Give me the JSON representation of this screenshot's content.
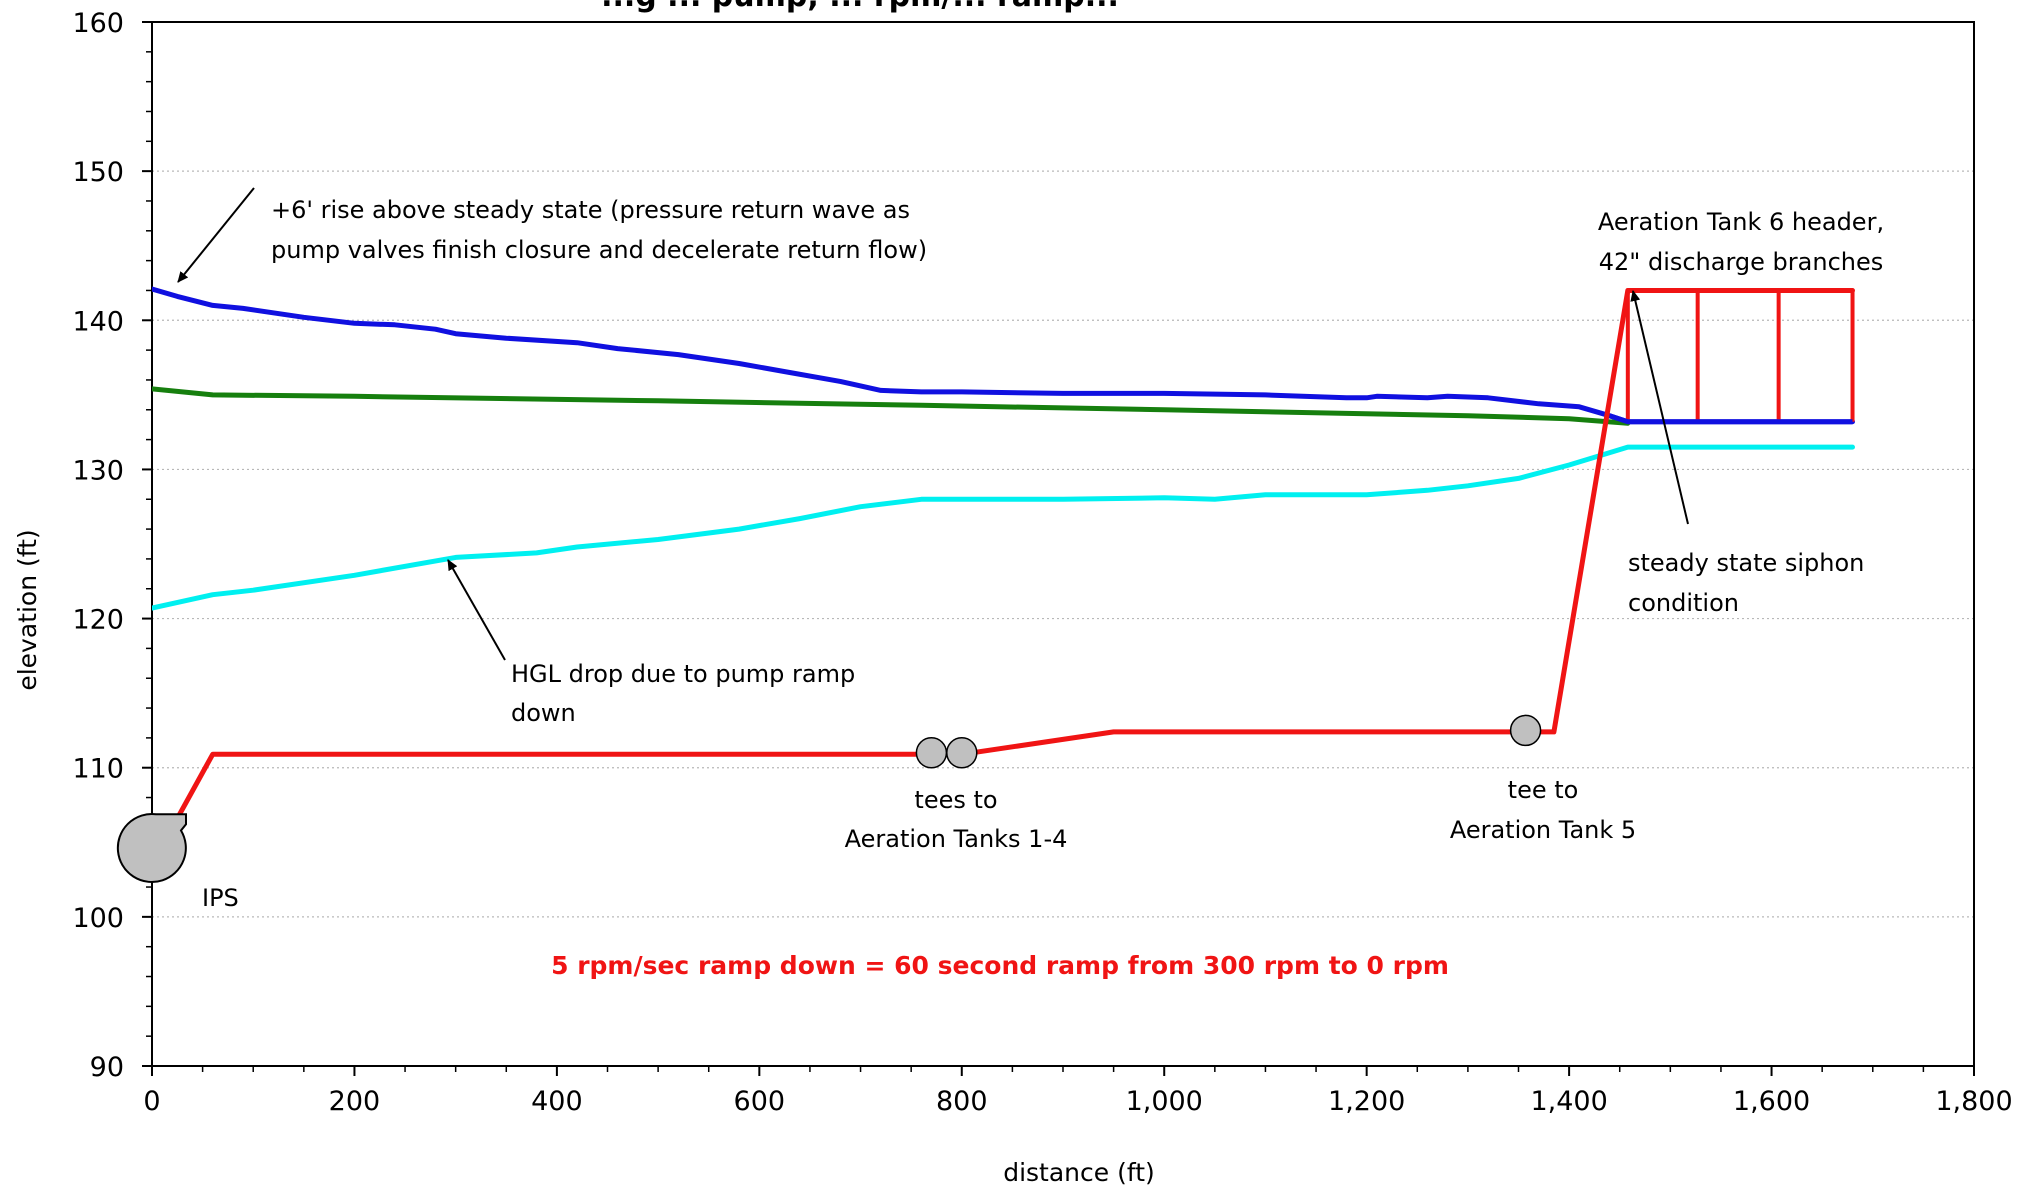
{
  "chart_data": {
    "type": "line",
    "title": "...g ... pump, ... rpm/... ramp...",
    "xlabel": "distance (ft)",
    "ylabel": "elevation (ft)",
    "xlim": [
      0,
      1800
    ],
    "ylim": [
      90,
      160
    ],
    "x_ticks": [
      0,
      200,
      400,
      600,
      800,
      1000,
      1200,
      1400,
      1600,
      1800
    ],
    "x_tick_labels": [
      "0",
      "200",
      "400",
      "600",
      "800",
      "1,000",
      "1,200",
      "1,400",
      "1,600",
      "1,800"
    ],
    "y_ticks": [
      90,
      100,
      110,
      120,
      130,
      140,
      150,
      160
    ],
    "y_tick_labels": [
      "90",
      "100",
      "110",
      "120",
      "130",
      "140",
      "150",
      "160"
    ],
    "grid": "horizontal dotted",
    "series": [
      {
        "key": "max_hgl",
        "color": "#1010e0",
        "points": [
          [
            0,
            142.1
          ],
          [
            25,
            141.6
          ],
          [
            60,
            141.0
          ],
          [
            90,
            140.8
          ],
          [
            150,
            140.2
          ],
          [
            200,
            139.8
          ],
          [
            240,
            139.7
          ],
          [
            280,
            139.4
          ],
          [
            300,
            139.1
          ],
          [
            350,
            138.8
          ],
          [
            420,
            138.5
          ],
          [
            460,
            138.1
          ],
          [
            520,
            137.7
          ],
          [
            580,
            137.1
          ],
          [
            630,
            136.5
          ],
          [
            680,
            135.9
          ],
          [
            720,
            135.3
          ],
          [
            760,
            135.2
          ],
          [
            800,
            135.2
          ],
          [
            900,
            135.1
          ],
          [
            1000,
            135.1
          ],
          [
            1100,
            135.0
          ],
          [
            1180,
            134.8
          ],
          [
            1200,
            134.8
          ],
          [
            1210,
            134.9
          ],
          [
            1260,
            134.8
          ],
          [
            1280,
            134.9
          ],
          [
            1320,
            134.8
          ],
          [
            1370,
            134.4
          ],
          [
            1410,
            134.2
          ],
          [
            1440,
            133.6
          ],
          [
            1458,
            133.2
          ],
          [
            1680,
            133.2
          ]
        ]
      },
      {
        "key": "steady_state",
        "color": "#167f0e",
        "points": [
          [
            0,
            135.4
          ],
          [
            60,
            135.0
          ],
          [
            200,
            134.9
          ],
          [
            500,
            134.6
          ],
          [
            760,
            134.3
          ],
          [
            1000,
            134.0
          ],
          [
            1300,
            133.6
          ],
          [
            1400,
            133.4
          ],
          [
            1458,
            133.1
          ]
        ]
      },
      {
        "key": "min_hgl",
        "color": "#00f0f0",
        "points": [
          [
            0,
            120.7
          ],
          [
            60,
            121.6
          ],
          [
            100,
            121.9
          ],
          [
            200,
            122.9
          ],
          [
            300,
            124.1
          ],
          [
            380,
            124.4
          ],
          [
            420,
            124.8
          ],
          [
            500,
            125.3
          ],
          [
            580,
            126.0
          ],
          [
            640,
            126.7
          ],
          [
            700,
            127.5
          ],
          [
            760,
            128.0
          ],
          [
            900,
            128.0
          ],
          [
            1000,
            128.1
          ],
          [
            1050,
            128.0
          ],
          [
            1100,
            128.3
          ],
          [
            1200,
            128.3
          ],
          [
            1260,
            128.6
          ],
          [
            1300,
            128.9
          ],
          [
            1350,
            129.4
          ],
          [
            1400,
            130.3
          ],
          [
            1458,
            131.5
          ],
          [
            1680,
            131.5
          ]
        ]
      },
      {
        "key": "pipe_profile",
        "color": "#f01414",
        "points": [
          [
            25,
            106.6
          ],
          [
            60,
            110.9
          ],
          [
            800,
            110.9
          ],
          [
            950,
            112.4
          ],
          [
            1385,
            112.4
          ],
          [
            1458,
            142.0
          ],
          [
            1680,
            142.0
          ]
        ]
      }
    ],
    "branch_drops": {
      "color": "#f01414",
      "x": [
        1458,
        1527,
        1607,
        1680
      ],
      "from_y": 142.0,
      "to_y": 133.2
    },
    "markers": [
      {
        "key": "tee1",
        "x": 770,
        "y": 111.0
      },
      {
        "key": "tee2",
        "x": 800,
        "y": 111.0
      },
      {
        "key": "tee5",
        "x": 1357,
        "y": 112.5
      }
    ],
    "pump": {
      "x": 0,
      "y": 104.6
    },
    "annotations": {
      "rise": {
        "line1": "+6' rise above steady state (pressure return wave as",
        "line2": "pump valves finish closure and decelerate return flow)"
      },
      "tank6": {
        "line1": "Aeration Tank 6 header,",
        "line2": "42\" discharge branches"
      },
      "siphon": {
        "line1": "steady state siphon",
        "line2": "condition"
      },
      "hgl": {
        "line1": "HGL drop due to pump ramp",
        "line2": "down"
      },
      "tees14": {
        "line1": "tees to",
        "line2": "Aeration Tanks 1-4"
      },
      "tee5": {
        "line1": "tee to",
        "line2": "Aeration Tank 5"
      },
      "ips": "IPS",
      "ramp_note": "5 rpm/sec ramp down = 60 second ramp from 300 rpm to 0 rpm"
    }
  }
}
